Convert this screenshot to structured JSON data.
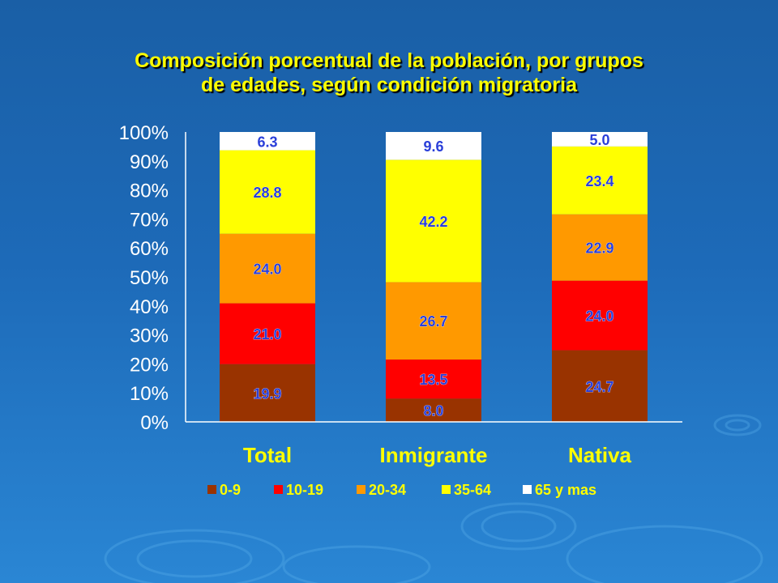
{
  "chart_data": {
    "type": "bar",
    "stacked": true,
    "title_lines": [
      "Composición porcentual de la población, por grupos",
      "de edades, según condición migratoria"
    ],
    "categories": [
      "Total",
      "Inmigrante",
      "Nativa"
    ],
    "series": [
      {
        "name": "0-9",
        "color": "#993300",
        "values": [
          19.9,
          8.0,
          24.7
        ],
        "labels": [
          "19.9",
          "8.0",
          "24.7"
        ]
      },
      {
        "name": "10-19",
        "color": "#ff0000",
        "values": [
          21.0,
          13.5,
          24.0
        ],
        "labels": [
          "21.0",
          "13.5",
          "24.0"
        ]
      },
      {
        "name": "20-34",
        "color": "#ff9900",
        "values": [
          24.0,
          26.7,
          22.9
        ],
        "labels": [
          "24.0",
          "26.7",
          "22.9"
        ]
      },
      {
        "name": "35-64",
        "color": "#ffff00",
        "values": [
          28.8,
          42.2,
          23.4
        ],
        "labels": [
          "28.8",
          "42.2",
          "23.4"
        ]
      },
      {
        "name": "65 y mas",
        "color": "#ffffff",
        "values": [
          6.3,
          9.6,
          5.0
        ],
        "labels": [
          "6.3",
          "9.6",
          "5.0"
        ]
      }
    ],
    "yticks": [
      "0%",
      "10%",
      "20%",
      "30%",
      "40%",
      "50%",
      "60%",
      "70%",
      "80%",
      "90%",
      "100%"
    ],
    "ylim": [
      0,
      100
    ],
    "grid": false,
    "legend_position": "bottom"
  }
}
